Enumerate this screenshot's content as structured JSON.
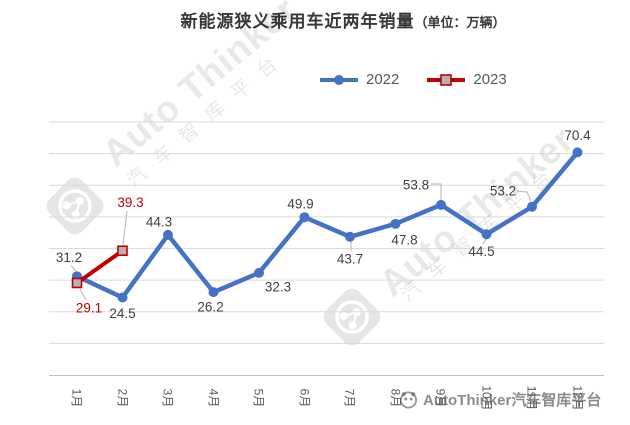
{
  "title": {
    "main": "新能源狭义乘用车近两年销量",
    "unit": "（单位：万辆）"
  },
  "legend": {
    "items": [
      {
        "label": "2022",
        "color": "#4472C4",
        "marker": "circle"
      },
      {
        "label": "2023",
        "color": "#C00000",
        "marker": "square"
      }
    ]
  },
  "watermark": {
    "brand": "Auto Thinker",
    "cn": "汽车智库平台",
    "footer": "AutoThinker汽车智库平台"
  },
  "colors": {
    "grid": "#DADADA",
    "axis": "#C0C0C0",
    "data_label": "#404040",
    "axis_label": "#595959",
    "legend_text": "#595959",
    "series_2022": "#4472C4",
    "series_2023": "#C00000",
    "marker_fill_2023": "#B3B3B3",
    "leader_line": "#BFBFBF"
  },
  "chart_data": {
    "type": "line",
    "title": "新能源狭义乘用车近两年销量（单位：万辆）",
    "unit": "万辆",
    "categories": [
      "1月",
      "2月",
      "3月",
      "4月",
      "5月",
      "6月",
      "7月",
      "8月",
      "9月",
      "10月",
      "11月",
      "12月"
    ],
    "series": [
      {
        "name": "2022",
        "color": "#4472C4",
        "marker": "circle",
        "values": [
          31.2,
          24.5,
          44.3,
          26.2,
          32.3,
          49.9,
          43.7,
          47.8,
          53.8,
          44.5,
          53.2,
          70.4
        ]
      },
      {
        "name": "2023",
        "color": "#C00000",
        "marker": "square",
        "marker_fill": "#B3B3B3",
        "values": [
          29.1,
          39.3
        ]
      }
    ],
    "ylim": [
      0,
      80
    ],
    "grid_step": 10,
    "grid": "horizontal",
    "y_axis_labels_visible": false,
    "legend_position": "top",
    "data_labels": true
  }
}
